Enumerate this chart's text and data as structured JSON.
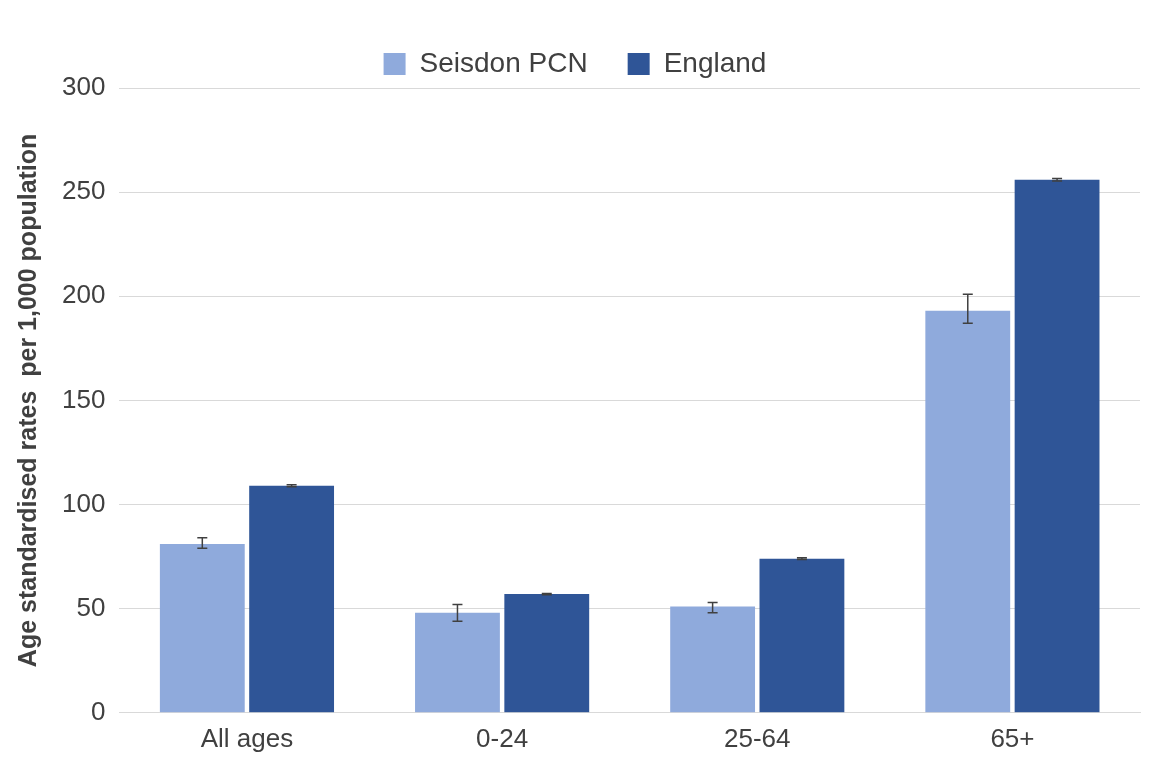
{
  "chart_data": {
    "type": "bar",
    "ylabel": "Age standardised rates  per 1,000 population",
    "categories": [
      "All ages",
      "0-24",
      "25-64",
      "65+"
    ],
    "series": [
      {
        "name": "Seisdon PCN",
        "color": "#8faadc",
        "values": [
          81,
          48,
          51,
          193
        ],
        "errors": [
          [
            79,
            84
          ],
          [
            44,
            52
          ],
          [
            48,
            53
          ],
          [
            187,
            201
          ]
        ]
      },
      {
        "name": "England",
        "color": "#2f5597",
        "values": [
          109,
          57,
          74,
          256
        ],
        "errors": [
          0.5,
          0.3,
          0.4,
          0.6
        ]
      }
    ],
    "ylim": [
      0,
      300
    ],
    "yticks": [
      0,
      50,
      100,
      150,
      200,
      250,
      300
    ],
    "grid": "y",
    "legend": "top"
  }
}
